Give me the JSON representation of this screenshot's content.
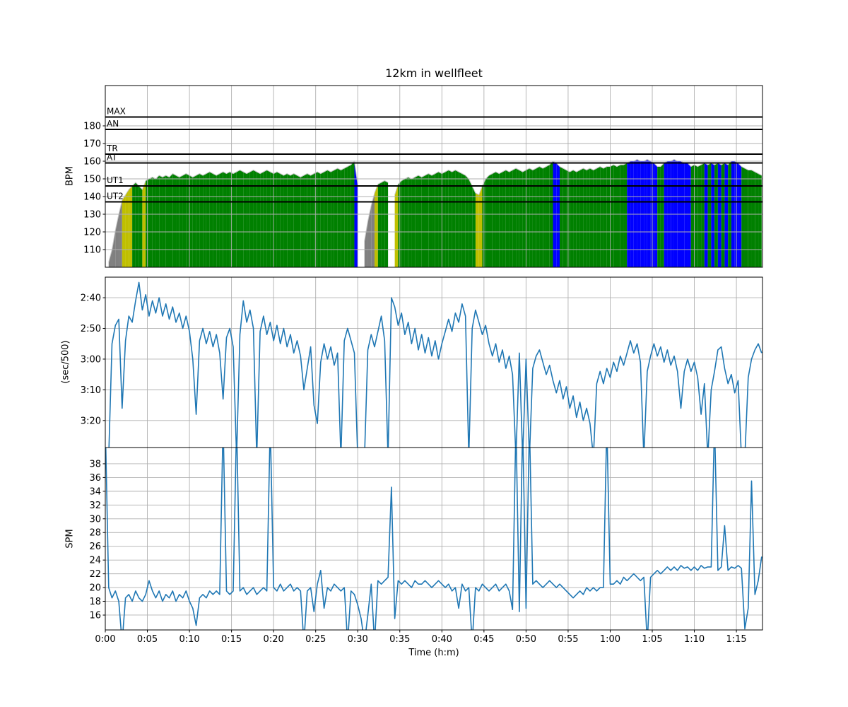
{
  "title": "12km in wellfleet",
  "colors": {
    "accent_line": "#1f77b4",
    "grid": "#b0b0b0",
    "axis": "#000000",
    "hr_gray": "#808080",
    "hr_yellow": "#bfbf00",
    "hr_green": "#008000",
    "hr_blue": "#0000ff",
    "hr_edge": "#c8c8c8"
  },
  "axes": {
    "x": {
      "label": "Time (h:m)",
      "min": 0,
      "max": 78.1,
      "ticks": [
        {
          "v": 0,
          "label": "0:00"
        },
        {
          "v": 5,
          "label": "0:05"
        },
        {
          "v": 10,
          "label": "0:10"
        },
        {
          "v": 15,
          "label": "0:15"
        },
        {
          "v": 20,
          "label": "0:20"
        },
        {
          "v": 25,
          "label": "0:25"
        },
        {
          "v": 30,
          "label": "0:30"
        },
        {
          "v": 35,
          "label": "0:35"
        },
        {
          "v": 40,
          "label": "0:40"
        },
        {
          "v": 45,
          "label": "0:45"
        },
        {
          "v": 50,
          "label": "0:50"
        },
        {
          "v": 55,
          "label": "0:55"
        },
        {
          "v": 60,
          "label": "1:00"
        },
        {
          "v": 65,
          "label": "1:05"
        },
        {
          "v": 70,
          "label": "1:10"
        },
        {
          "v": 75,
          "label": "1:15"
        }
      ]
    },
    "hr": {
      "ylabel": "BPM",
      "min": 100,
      "max": 202.8,
      "ticks": [
        110,
        120,
        130,
        140,
        150,
        160,
        170,
        180
      ]
    },
    "pace": {
      "ylabel": "(sec/500)",
      "min": 153.3,
      "max": 208.8,
      "inverted": true,
      "ticks": [
        {
          "v": 160,
          "label": "2:40"
        },
        {
          "v": 170,
          "label": "2:50"
        },
        {
          "v": 180,
          "label": "3:00"
        },
        {
          "v": 190,
          "label": "3:10"
        },
        {
          "v": 200,
          "label": "3:20"
        }
      ]
    },
    "spm": {
      "ylabel": "SPM",
      "min": 13.84,
      "max": 40.36,
      "ticks": [
        16,
        18,
        20,
        22,
        24,
        26,
        28,
        30,
        32,
        34,
        36,
        38
      ]
    }
  },
  "zones": [
    {
      "label": "MAX",
      "bpm": 185
    },
    {
      "label": "AN",
      "bpm": 178
    },
    {
      "label": "TR",
      "bpm": 164
    },
    {
      "label": "AT",
      "bpm": 159
    },
    {
      "label": "UT1",
      "bpm": 146
    },
    {
      "label": "UT2",
      "bpm": 137
    }
  ],
  "chart_data": {
    "type": "line",
    "title": "12km in wellfleet",
    "xlabel": "Time (h:m)",
    "x_unit": "minutes",
    "t0": 0,
    "dt": 0.4,
    "grid": true,
    "zone_bands": {
      "ut2": 137,
      "ut1": 146,
      "at": 159
    },
    "series": [
      {
        "name": "heart_rate_bpm",
        "style": "zone-filled-area",
        "values": [
          null,
          103,
          110,
          121,
          130,
          138,
          141,
          144,
          146,
          148,
          146,
          144,
          149,
          150,
          151,
          150,
          152,
          151,
          152,
          151,
          153,
          152,
          151,
          152,
          153,
          152,
          151,
          152,
          153,
          152,
          153,
          154,
          153,
          152,
          153,
          154,
          153,
          154,
          153,
          154,
          155,
          154,
          153,
          154,
          155,
          154,
          153,
          154,
          155,
          154,
          153,
          154,
          153,
          152,
          153,
          152,
          153,
          152,
          151,
          152,
          153,
          152,
          153,
          154,
          153,
          154,
          155,
          154,
          155,
          156,
          155,
          156,
          157,
          158,
          160,
          147,
          null,
          115,
          126,
          135,
          142,
          147,
          148,
          149,
          148,
          null,
          141,
          147,
          149,
          150,
          151,
          150,
          151,
          152,
          151,
          152,
          153,
          152,
          153,
          154,
          153,
          154,
          155,
          154,
          155,
          154,
          153,
          152,
          150,
          146,
          142,
          141,
          146,
          150,
          152,
          153,
          154,
          153,
          154,
          155,
          154,
          155,
          156,
          155,
          154,
          155,
          156,
          155,
          156,
          157,
          156,
          157,
          158,
          160,
          159,
          157,
          156,
          155,
          154,
          155,
          154,
          155,
          156,
          155,
          156,
          155,
          156,
          157,
          156,
          157,
          157,
          158,
          157,
          158,
          158,
          159,
          160,
          160,
          161,
          160,
          160,
          161,
          160,
          159,
          157,
          157,
          159,
          160,
          160,
          161,
          160,
          160,
          159,
          159,
          157,
          158,
          157,
          158,
          159,
          158,
          159,
          158,
          159,
          158,
          159,
          158,
          160,
          160,
          159,
          157,
          156,
          155,
          155,
          154,
          153,
          152
        ]
      },
      {
        "name": "pace_sec_per_500m",
        "style": "line",
        "values": [
          null,
          212,
          175,
          169,
          167,
          196,
          174,
          166,
          168,
          161,
          155,
          164,
          159,
          166,
          161,
          165,
          160,
          166,
          162,
          167,
          163,
          168,
          165,
          170,
          166,
          171,
          180,
          198,
          174,
          170,
          175,
          171,
          176,
          172,
          178,
          193,
          173,
          170,
          176,
          212,
          172,
          161,
          168,
          164,
          170,
          212,
          171,
          166,
          172,
          168,
          174,
          169,
          175,
          170,
          176,
          172,
          178,
          174,
          179,
          190,
          183,
          176,
          195,
          201,
          181,
          175,
          180,
          176,
          182,
          178,
          212,
          174,
          170,
          174,
          178,
          212,
          null,
          212,
          177,
          172,
          176,
          171,
          166,
          174,
          212,
          160,
          163,
          169,
          165,
          172,
          168,
          175,
          170,
          177,
          172,
          178,
          173,
          179,
          174,
          180,
          175,
          171,
          167,
          171,
          165,
          168,
          162,
          166,
          212,
          170,
          164,
          168,
          172,
          169,
          175,
          179,
          175,
          181,
          177,
          183,
          179,
          185,
          212,
          178,
          212,
          180,
          212,
          183,
          179,
          177,
          181,
          185,
          182,
          187,
          191,
          187,
          193,
          189,
          196,
          192,
          199,
          194,
          200,
          196,
          201,
          212,
          188,
          184,
          188,
          183,
          186,
          181,
          184,
          179,
          182,
          178,
          174,
          178,
          175,
          181,
          212,
          184,
          179,
          175,
          179,
          176,
          181,
          177,
          182,
          179,
          184,
          196,
          184,
          180,
          184,
          181,
          186,
          198,
          188,
          212,
          190,
          184,
          177,
          176,
          183,
          188,
          185,
          191,
          187,
          212,
          212,
          186,
          180,
          177,
          175,
          178
        ]
      },
      {
        "name": "stroke_rate_spm",
        "style": "line",
        "values": [
          44,
          20,
          18.5,
          19.5,
          18,
          12,
          18.5,
          19,
          18,
          19.5,
          18.5,
          18,
          19,
          21,
          19.5,
          18.5,
          19.5,
          18,
          19,
          18.5,
          19.5,
          18,
          19,
          18.5,
          19.5,
          18,
          17,
          14.5,
          18.5,
          19,
          18.5,
          19.5,
          19,
          19.5,
          19,
          44,
          19.5,
          19,
          19.5,
          44,
          19.5,
          20,
          19,
          19.5,
          20,
          19,
          19.5,
          20,
          19.5,
          44,
          20,
          19.5,
          20.5,
          19.5,
          20,
          20.5,
          19.5,
          20,
          19.5,
          12,
          19.5,
          20,
          16.5,
          20.5,
          22.5,
          17,
          20,
          19.5,
          20.5,
          20,
          19.5,
          20,
          12,
          19.5,
          19,
          17.5,
          15.5,
          12,
          16,
          20.5,
          12,
          21,
          20.5,
          21,
          21.5,
          34.6,
          15.5,
          21,
          20.5,
          21,
          20.5,
          20,
          21,
          20.5,
          20.5,
          21,
          20.5,
          20,
          20.5,
          21,
          20.5,
          20,
          20.5,
          19.5,
          20,
          17,
          20.5,
          19.5,
          20,
          12,
          20,
          19.5,
          20.5,
          20,
          19.5,
          20,
          20.5,
          19.5,
          20,
          20.5,
          19.5,
          16.8,
          44,
          16.5,
          44,
          17,
          44,
          20.5,
          21,
          20.5,
          20,
          20.5,
          21,
          20.5,
          20,
          20.5,
          20,
          19.5,
          19,
          18.5,
          19,
          19.5,
          19,
          20,
          19.5,
          20,
          19.5,
          20,
          20,
          44,
          20.5,
          20.5,
          21,
          20.5,
          21.5,
          21,
          21.5,
          22,
          21.5,
          21,
          21.5,
          12,
          21.5,
          22,
          22.5,
          22,
          22.5,
          23,
          22.5,
          23,
          22.5,
          23.2,
          22.8,
          23,
          22.5,
          23,
          22.5,
          23.2,
          22.8,
          23,
          23,
          44,
          22.5,
          23,
          29,
          22.5,
          23,
          22.8,
          23.2,
          22.8,
          14,
          17,
          35.5,
          19,
          21,
          24.5
        ]
      }
    ]
  }
}
